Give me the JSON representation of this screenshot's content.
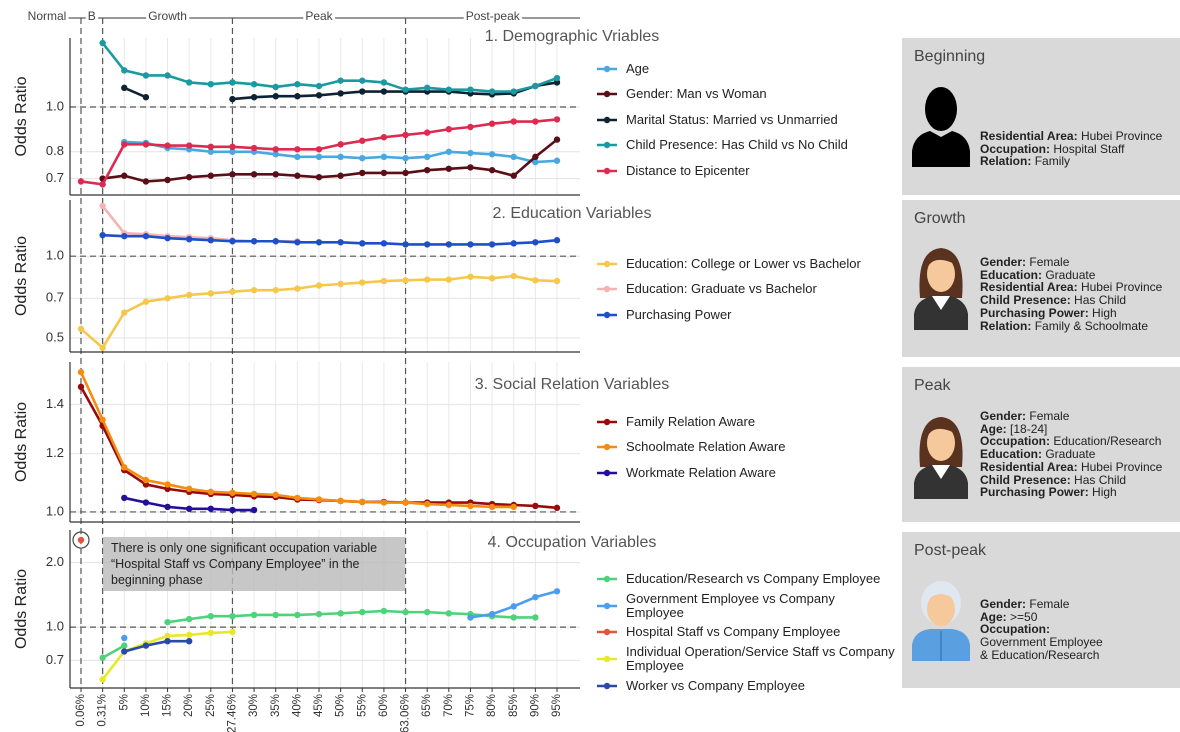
{
  "chart_data": [
    {
      "type": "line",
      "title": "1. Demographic Vriables",
      "y_label": "Odds Ratio",
      "log": true,
      "grid": true,
      "ylim": [
        0.645,
        1.41
      ],
      "yticks": [
        0.7,
        0.8,
        {
          "value": 1,
          "label": "1.0"
        }
      ],
      "refline": 1,
      "phases": [
        "Normal",
        "B",
        "Growth",
        "Peak",
        "Post-peak"
      ],
      "vlines": [
        0,
        1,
        7,
        15
      ],
      "series": [
        {
          "name": "Age",
          "color": "#4aa8e0",
          "values": [
            null,
            null,
            0.84,
            0.836,
            0.815,
            0.81,
            0.8,
            0.8,
            0.8,
            0.79,
            0.78,
            0.78,
            0.78,
            0.775,
            0.78,
            0.775,
            0.78,
            0.8,
            0.795,
            0.79,
            0.78,
            0.76,
            0.765
          ]
        },
        {
          "name": "Gender: Man vs Woman",
          "color": "#5a0f18",
          "values": [
            null,
            0.7,
            0.71,
            0.69,
            0.695,
            0.705,
            0.71,
            0.715,
            0.715,
            0.715,
            0.71,
            0.705,
            0.71,
            0.72,
            0.72,
            0.72,
            0.73,
            0.735,
            0.74,
            0.73,
            0.71,
            0.78,
            0.85
          ]
        },
        {
          "name": "Marital Status: Married vs Unmarried",
          "color": "#0e2233",
          "values": [
            null,
            null,
            1.1,
            1.05,
            null,
            null,
            null,
            1.04,
            1.05,
            1.055,
            1.055,
            1.06,
            1.07,
            1.08,
            1.08,
            1.08,
            1.08,
            1.08,
            1.07,
            1.065,
            1.07,
            1.11,
            1.13
          ]
        },
        {
          "name": "Child Presence: Has Child vs No Child",
          "color": "#1a9aa0",
          "values": [
            null,
            1.375,
            1.2,
            1.17,
            1.17,
            1.13,
            1.12,
            1.13,
            1.12,
            1.105,
            1.12,
            1.11,
            1.14,
            1.14,
            1.13,
            1.09,
            1.1,
            1.09,
            1.09,
            1.08,
            1.08,
            1.11,
            1.155
          ]
        },
        {
          "name": "Distance to Epicenter",
          "color": "#dc2a50",
          "values": [
            0.69,
            0.68,
            0.83,
            0.83,
            0.825,
            0.825,
            0.82,
            0.82,
            0.815,
            0.81,
            0.81,
            0.81,
            0.83,
            0.845,
            0.86,
            0.87,
            0.88,
            0.895,
            0.905,
            0.92,
            0.93,
            0.93,
            0.94
          ]
        }
      ]
    },
    {
      "type": "line",
      "title": "2. Education Variables",
      "y_label": "Odds Ratio",
      "log": true,
      "grid": true,
      "ylim": [
        0.444,
        1.61
      ],
      "yticks": [
        0.5,
        0.7,
        {
          "value": 1,
          "label": "1.0"
        }
      ],
      "refline": 1,
      "series": [
        {
          "name": "Education: College or Lower vs Bachelor",
          "color": "#f5c84c",
          "values": [
            0.54,
            0.46,
            0.62,
            0.68,
            0.7,
            0.72,
            0.73,
            0.74,
            0.75,
            0.75,
            0.76,
            0.78,
            0.79,
            0.8,
            0.81,
            0.815,
            0.82,
            0.82,
            0.84,
            0.83,
            0.845,
            0.815,
            0.81
          ]
        },
        {
          "name": "Education: Graduate vs Bachelor",
          "color": "#f4b4b4",
          "values": [
            null,
            1.53,
            1.215,
            1.205,
            1.185,
            1.175,
            1.165,
            1.145,
            1.135,
            1.135,
            1.135,
            null,
            null,
            null,
            null,
            null,
            null,
            null,
            null,
            null,
            null,
            null,
            null
          ]
        },
        {
          "name": "Purchasing Power",
          "color": "#1f4fc8",
          "values": [
            null,
            1.195,
            1.185,
            1.185,
            1.165,
            1.155,
            1.145,
            1.135,
            1.135,
            1.135,
            1.125,
            1.125,
            1.125,
            1.115,
            1.115,
            1.105,
            1.105,
            1.105,
            1.105,
            1.105,
            1.115,
            1.125,
            1.145
          ]
        }
      ]
    },
    {
      "type": "line",
      "title": "3. Social Relation Variables",
      "y_label": "Odds Ratio",
      "log": true,
      "grid": true,
      "ylim": [
        0.969,
        1.6
      ],
      "yticks": [
        {
          "value": 1,
          "label": "1.0"
        },
        1.2,
        1.4
      ],
      "refline": 1,
      "series": [
        {
          "name": "Family Relation Aware",
          "color": "#9a0a0a",
          "values": [
            1.48,
            1.31,
            1.14,
            1.09,
            1.075,
            1.065,
            1.058,
            1.055,
            1.05,
            1.048,
            1.04,
            1.038,
            1.035,
            1.032,
            1.032,
            1.03,
            1.03,
            1.03,
            1.03,
            1.025,
            1.022,
            1.019,
            1.013
          ]
        },
        {
          "name": "Schoolmate Relation Aware",
          "color": "#f48c10",
          "values": [
            1.55,
            1.335,
            1.15,
            1.105,
            1.09,
            1.075,
            1.065,
            1.062,
            1.058,
            1.055,
            1.045,
            1.04,
            1.035,
            1.032,
            1.03,
            1.03,
            1.025,
            1.022,
            1.019,
            1.016,
            1.016,
            null,
            null
          ]
        },
        {
          "name": "Workmate Relation Aware",
          "color": "#22109a",
          "values": [
            null,
            null,
            1.045,
            1.03,
            1.016,
            1.01,
            1.01,
            1.006,
            1.006,
            null,
            null,
            null,
            null,
            null,
            null,
            null,
            null,
            null,
            null,
            null,
            null,
            null,
            null
          ]
        }
      ]
    },
    {
      "type": "line",
      "title": "4. Occupation Variables",
      "y_label": "Odds Ratio",
      "log": true,
      "grid": true,
      "ylim": [
        0.52,
        2.84
      ],
      "yticks": [
        0.7,
        {
          "value": 1,
          "label": "1.0"
        },
        {
          "value": 2,
          "label": "2.0"
        }
      ],
      "refline": 1,
      "categories": [
        "0.06%",
        "0.31%",
        "5%",
        "10%",
        "15%",
        "20%",
        "25%",
        "27.46%",
        "30%",
        "35%",
        "40%",
        "45%",
        "50%",
        "55%",
        "60%",
        "63.06%",
        "65%",
        "70%",
        "75%",
        "80%",
        "85%",
        "90%",
        "95%"
      ],
      "annotation": "There is only one significant occupation variable “Hospital Staff vs Company Employee” in the beginning phase",
      "series": [
        {
          "name": "Education/Research vs Company Employee",
          "color": "#50d27a",
          "values": [
            null,
            0.72,
            0.82,
            null,
            1.055,
            1.09,
            1.125,
            1.125,
            1.14,
            1.14,
            1.14,
            1.15,
            1.16,
            1.175,
            1.19,
            1.175,
            1.175,
            1.16,
            1.15,
            1.125,
            1.11,
            1.11,
            null
          ]
        },
        {
          "name": "Government Employee vs Company Employee",
          "color": "#4c9cf0",
          "values": [
            null,
            null,
            0.89,
            null,
            null,
            null,
            null,
            null,
            null,
            null,
            null,
            null,
            null,
            null,
            null,
            null,
            null,
            null,
            1.11,
            1.15,
            1.25,
            1.38,
            1.47
          ]
        },
        {
          "name": "Hospital Staff vs Company Employee",
          "color": "#e2553a",
          "values": [
            2.55,
            null,
            null,
            null,
            null,
            null,
            null,
            null,
            null,
            null,
            null,
            null,
            null,
            null,
            null,
            null,
            null,
            null,
            null,
            null,
            null,
            null,
            null
          ]
        },
        {
          "name": "Individual Operation/Service Staff vs Company Employee",
          "color": "#e8e82a",
          "values": [
            null,
            0.57,
            0.77,
            0.84,
            0.91,
            0.92,
            0.94,
            0.95,
            null,
            null,
            null,
            null,
            null,
            null,
            null,
            null,
            null,
            null,
            null,
            null,
            null,
            null,
            null
          ]
        },
        {
          "name": "Worker vs Company Employee",
          "color": "#2a4aa8",
          "values": [
            null,
            null,
            0.77,
            0.82,
            0.86,
            0.86,
            null,
            null,
            null,
            null,
            null,
            null,
            null,
            null,
            null,
            null,
            null,
            null,
            null,
            null,
            null,
            null,
            null
          ]
        }
      ]
    }
  ],
  "personas": [
    {
      "title": "Beginning",
      "fields": [
        {
          "label": "Residential Area:",
          "value": "Hubei Province"
        },
        {
          "label": "Occupation:",
          "value": "Hospital Staff"
        },
        {
          "label": "Relation:",
          "value": "Family"
        }
      ]
    },
    {
      "title": "Growth",
      "fields": [
        {
          "label": "Gender:",
          "value": "Female"
        },
        {
          "label": "Education:",
          "value": "Graduate"
        },
        {
          "label": "Residential Area:",
          "value": "Hubei Province"
        },
        {
          "label": "Child Presence:",
          "value": "Has Child"
        },
        {
          "label": "Purchasing Power:",
          "value": "High"
        },
        {
          "label": "Relation:",
          "value": "Family & Schoolmate"
        }
      ]
    },
    {
      "title": "Peak",
      "fields": [
        {
          "label": "Gender:",
          "value": "Female"
        },
        {
          "label": "Age:",
          "value": "[18-24]"
        },
        {
          "label": "Occupation:",
          "value": "Education/Research"
        },
        {
          "label": "Education:",
          "value": "Graduate"
        },
        {
          "label": "Residential Area:",
          "value": "Hubei Province"
        },
        {
          "label": "Child Presence:",
          "value": "Has Child"
        },
        {
          "label": "Purchasing Power:",
          "value": "High"
        }
      ]
    },
    {
      "title": "Post-peak",
      "fields": [
        {
          "label": "Gender:",
          "value": "Female"
        },
        {
          "label": "Age:",
          "value": ">=50"
        },
        {
          "label": "Occupation:",
          "value": [
            "Government Employee",
            "& Education/Research"
          ]
        }
      ]
    }
  ]
}
